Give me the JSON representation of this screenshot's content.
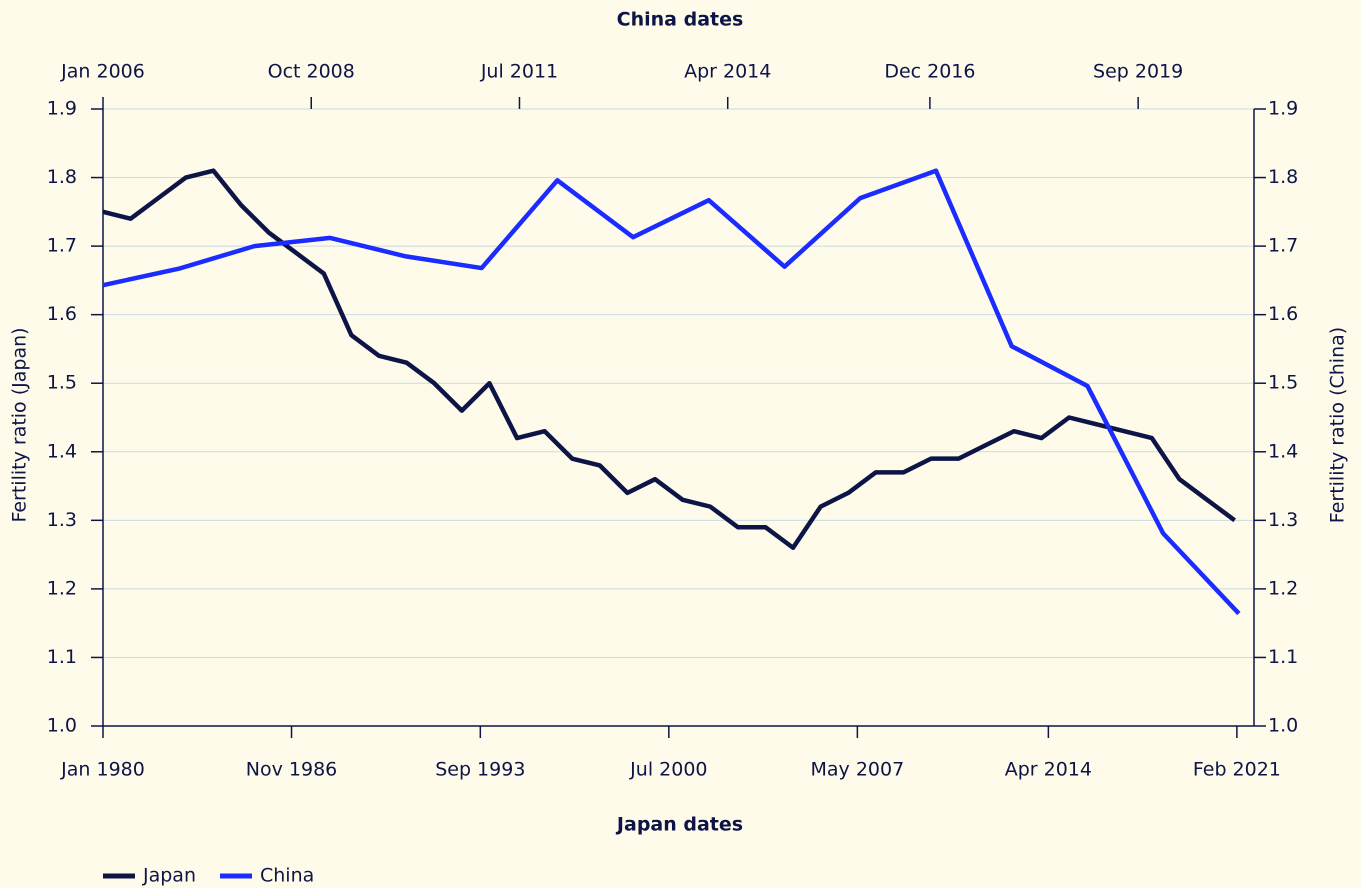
{
  "chart_data": {
    "type": "line",
    "xlabel": "Japan dates",
    "x2label": "China dates",
    "ylabel": "Fertility ratio (Japan)",
    "y2label": "Fertility ratio (China)",
    "xlim": [
      1980,
      2021.7
    ],
    "xticks": [
      {
        "value": 1980,
        "label": "Jan 1980"
      },
      {
        "value": 1986.83,
        "label": "Nov 1986"
      },
      {
        "value": 1993.67,
        "label": "Sep 1993"
      },
      {
        "value": 2000.5,
        "label": "Jul 2000"
      },
      {
        "value": 2007.33,
        "label": "May 2007"
      },
      {
        "value": 2014.25,
        "label": "Apr 2014"
      },
      {
        "value": 2021.08,
        "label": "Feb 2021"
      }
    ],
    "x2lim": [
      2006,
      2021.2
    ],
    "x2ticks": [
      {
        "value": 2006,
        "label": "Jan 2006"
      },
      {
        "value": 2008.75,
        "label": "Oct 2008"
      },
      {
        "value": 2011.5,
        "label": "Jul 2011"
      },
      {
        "value": 2014.25,
        "label": "Apr 2014"
      },
      {
        "value": 2016.92,
        "label": "Dec 2016"
      },
      {
        "value": 2019.67,
        "label": "Sep 2019"
      }
    ],
    "ylim": [
      1.0,
      1.9
    ],
    "yticks": [
      {
        "value": 1.0,
        "label": "1.0"
      },
      1.1,
      1.2,
      1.3,
      1.4,
      1.5,
      1.6,
      1.7,
      1.8,
      1.9
    ],
    "y2lim": [
      1.0,
      1.9
    ],
    "y2ticks": [
      {
        "value": 1.0,
        "label": "1.0"
      },
      1.1,
      1.2,
      1.3,
      1.4,
      1.5,
      1.6,
      1.7,
      1.8,
      1.9
    ],
    "grid": true,
    "legend": "bottom-left",
    "series": [
      {
        "name": "Japan",
        "color": "#0d1547",
        "xaxis": "x",
        "x": [
          1980,
          1981,
          1982,
          1983,
          1984,
          1985,
          1986,
          1987,
          1988,
          1989,
          1990,
          1991,
          1992,
          1993,
          1994,
          1995,
          1996,
          1997,
          1998,
          1999,
          2000,
          2001,
          2002,
          2003,
          2004,
          2005,
          2006,
          2007,
          2008,
          2009,
          2010,
          2011,
          2012,
          2013,
          2014,
          2015,
          2016,
          2017,
          2018,
          2019,
          2020,
          2021
        ],
        "values": [
          1.75,
          1.74,
          1.77,
          1.8,
          1.81,
          1.76,
          1.72,
          1.69,
          1.66,
          1.57,
          1.54,
          1.53,
          1.5,
          1.46,
          1.5,
          1.42,
          1.43,
          1.39,
          1.38,
          1.34,
          1.36,
          1.33,
          1.32,
          1.29,
          1.29,
          1.26,
          1.32,
          1.34,
          1.37,
          1.37,
          1.39,
          1.39,
          1.41,
          1.43,
          1.42,
          1.45,
          1.44,
          1.43,
          1.42,
          1.36,
          1.33,
          1.3
        ]
      },
      {
        "name": "China",
        "color": "#1a2cff",
        "xaxis": "x2",
        "axis": "y2",
        "x": [
          2006,
          2007,
          2008,
          2009,
          2010,
          2011,
          2012,
          2013,
          2014,
          2015,
          2016,
          2017,
          2018,
          2019,
          2020,
          2021
        ],
        "values": [
          1.643,
          1.667,
          1.7,
          1.712,
          1.685,
          1.668,
          1.796,
          1.713,
          1.767,
          1.67,
          1.77,
          1.81,
          1.554,
          1.496,
          1.281,
          1.164
        ]
      }
    ]
  }
}
